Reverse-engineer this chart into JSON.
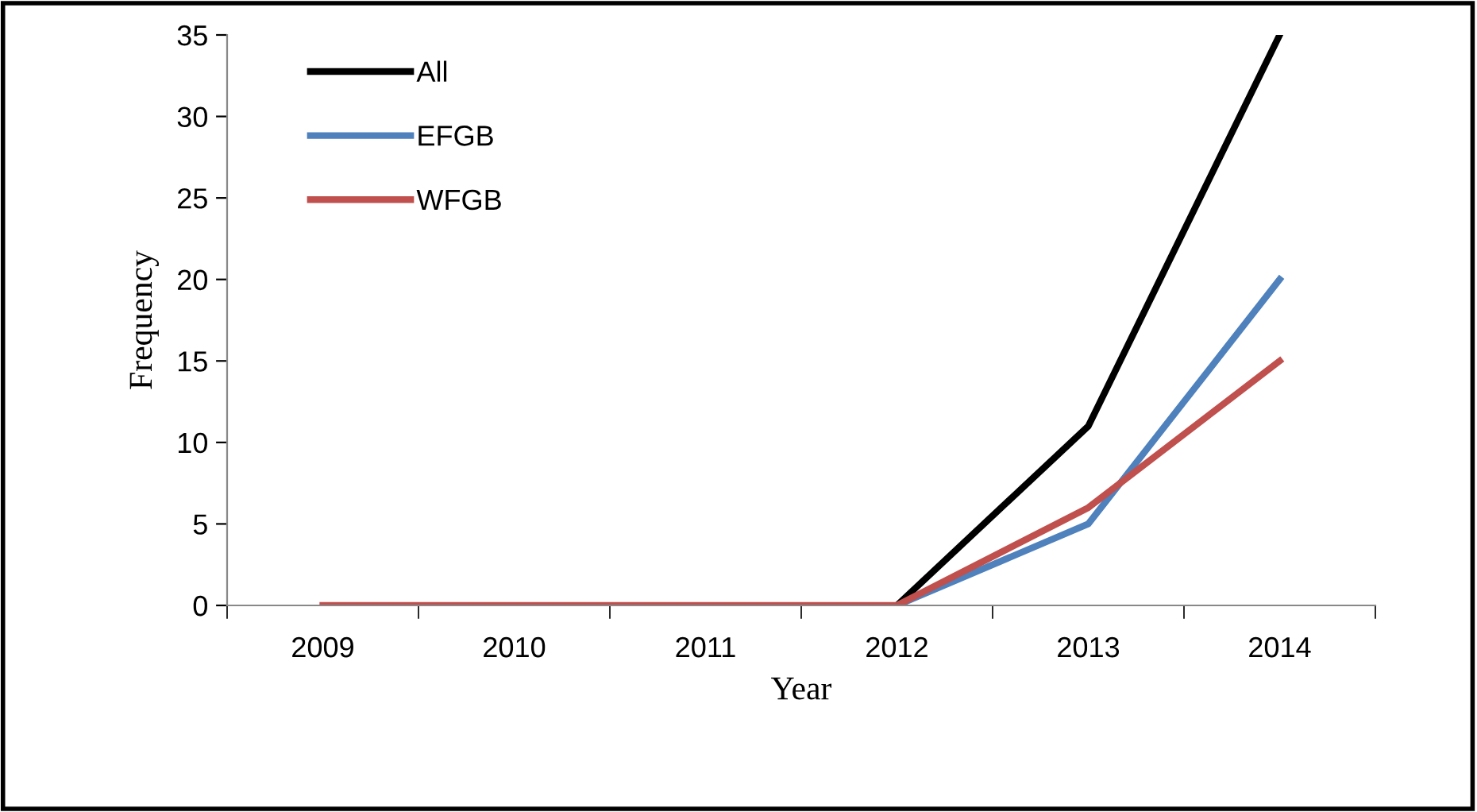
{
  "chart_data": {
    "type": "line",
    "xlabel": "Year",
    "ylabel": "Frequency",
    "categories": [
      "2009",
      "2010",
      "2011",
      "2012",
      "2013",
      "2014"
    ],
    "series": [
      {
        "name": "All",
        "color": "#000000",
        "values": [
          null,
          null,
          null,
          0,
          11,
          35
        ]
      },
      {
        "name": "EFGB",
        "color": "#4f81bd",
        "values": [
          null,
          null,
          null,
          0,
          5,
          20
        ]
      },
      {
        "name": "WFGB",
        "color": "#c0504d",
        "values": [
          0,
          0,
          0,
          0,
          6,
          15
        ]
      }
    ],
    "ylim": [
      0,
      35
    ],
    "yticks": [
      0,
      5,
      10,
      15,
      20,
      25,
      30,
      35
    ],
    "grid": false,
    "legend": "top left",
    "marker": "none",
    "line_style": "solid"
  }
}
